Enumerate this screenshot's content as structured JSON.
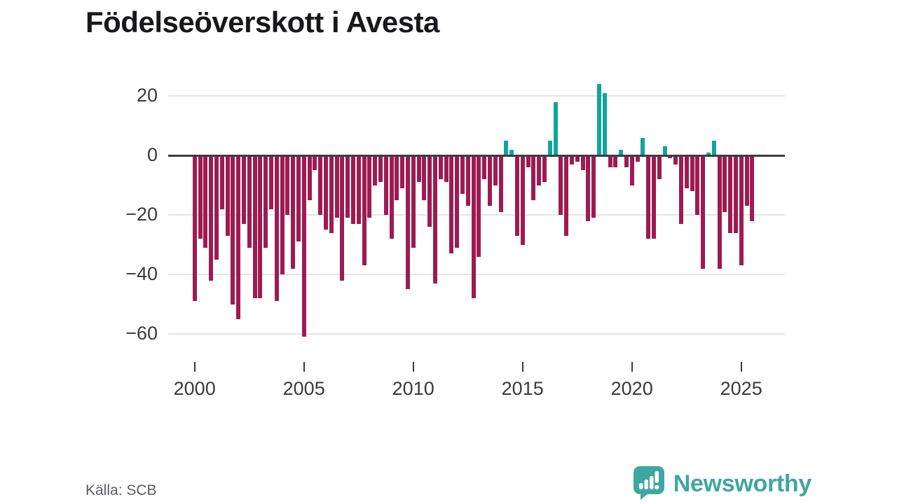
{
  "title": "Födelseöverskott i Avesta",
  "source": "Källa: SCB",
  "brand": {
    "name": "Newsworthy"
  },
  "colors": {
    "negative_bar": "#9e1b51",
    "positive_bar": "#0ea69c",
    "zero_line": "#3d3d3f",
    "gridline": "#e4e4e4",
    "brand_teal": "#3ea7a1",
    "title_text": "#17171c",
    "axis_text": "#3a3a3e",
    "source_text": "#5c5c66"
  },
  "chart_data": {
    "type": "bar",
    "title": "Födelseöverskott i Avesta",
    "frequency": "quarterly",
    "start_period": "2000-Q1",
    "end_period": "2025-Q3",
    "series": [
      {
        "name": "Födelseöverskott",
        "values": [
          -49,
          -28,
          -31,
          -42,
          -35,
          -18,
          -27,
          -50,
          -55,
          -23,
          -31,
          -48,
          -48,
          -31,
          -18,
          -49,
          -40,
          -20,
          -38,
          -29,
          -61,
          -15,
          -5,
          -20,
          -25,
          -26,
          -21,
          -42,
          -21,
          -23,
          -23,
          -37,
          -21,
          -10,
          -9,
          -20,
          -28,
          -15,
          -11,
          -45,
          -31,
          -9,
          -15,
          -24,
          -43,
          -8,
          -9,
          -33,
          -31,
          -13,
          -17,
          -48,
          -34,
          -8,
          -17,
          -10,
          -19,
          5,
          2,
          -27,
          -30,
          -4,
          -15,
          -10,
          -9,
          5,
          18,
          -20,
          -27,
          -3,
          -2,
          -5,
          -22,
          -21,
          24,
          21,
          -4,
          -4,
          2,
          -4,
          -10,
          -2,
          6,
          -28,
          -28,
          -8,
          3,
          -1,
          -3,
          -23,
          -11,
          -12,
          -20,
          -38,
          1,
          5,
          -38,
          -19,
          -26,
          -26,
          -37,
          -17,
          -22
        ]
      }
    ],
    "xlabel": "",
    "ylabel": "",
    "xtick_labels": [
      "2000",
      "2005",
      "2010",
      "2015",
      "2020",
      "2025"
    ],
    "xtick_years": [
      2000,
      2005,
      2010,
      2015,
      2020,
      2025
    ],
    "ytick_values": [
      20,
      0,
      -20,
      -40,
      -60
    ],
    "ytick_labels": [
      "20",
      "0",
      "−20",
      "−40",
      "−60"
    ],
    "ylim": [
      -66,
      26
    ],
    "grid": "horizontal",
    "legend": "none",
    "bar_color_rule": "teal when positive, dark raspberry when negative"
  }
}
